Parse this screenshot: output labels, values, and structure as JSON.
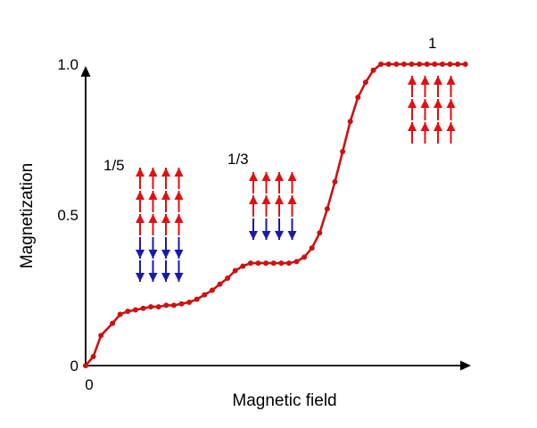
{
  "chart_data": {
    "type": "line",
    "title": "",
    "xlabel": "Magnetic field",
    "ylabel": "Magnetization",
    "x_tick_labels": [
      "0"
    ],
    "y_ticks": [
      {
        "value": 0,
        "label": "0"
      },
      {
        "value": 0.5,
        "label": "0.5"
      },
      {
        "value": 1.0,
        "label": "1.0"
      }
    ],
    "xlim": [
      0,
      1.0
    ],
    "ylim": [
      0,
      1.0
    ],
    "grid": false,
    "legend": "none",
    "series": [
      {
        "color": "#cc1111",
        "marker": "circle",
        "x": [
          0.0,
          0.02,
          0.04,
          0.07,
          0.09,
          0.11,
          0.13,
          0.15,
          0.17,
          0.19,
          0.21,
          0.23,
          0.25,
          0.27,
          0.29,
          0.31,
          0.33,
          0.35,
          0.37,
          0.39,
          0.41,
          0.43,
          0.45,
          0.47,
          0.49,
          0.51,
          0.53,
          0.55,
          0.57,
          0.59,
          0.61,
          0.63,
          0.65,
          0.67,
          0.69,
          0.71,
          0.73,
          0.75,
          0.77,
          0.79,
          0.81,
          0.83,
          0.85,
          0.87,
          0.89,
          0.91,
          0.93,
          0.95,
          0.97,
          0.99
        ],
        "y": [
          0.0,
          0.03,
          0.1,
          0.14,
          0.17,
          0.18,
          0.185,
          0.19,
          0.195,
          0.195,
          0.2,
          0.2,
          0.205,
          0.21,
          0.22,
          0.235,
          0.25,
          0.27,
          0.29,
          0.315,
          0.33,
          0.34,
          0.34,
          0.34,
          0.34,
          0.34,
          0.34,
          0.345,
          0.36,
          0.39,
          0.44,
          0.52,
          0.61,
          0.71,
          0.81,
          0.89,
          0.94,
          0.98,
          1.0,
          1.0,
          1.0,
          1.0,
          1.0,
          1.0,
          1.0,
          1.0,
          1.0,
          1.0,
          1.0,
          1.0
        ]
      }
    ],
    "annotations": [
      {
        "text": "1/5",
        "spins_up_rows": 3,
        "spins_down_rows": 2,
        "columns": 4
      },
      {
        "text": "1/3",
        "spins_up_rows": 2,
        "spins_down_rows": 1,
        "columns": 4
      },
      {
        "text": "1",
        "spins_up_rows": 3,
        "spins_down_rows": 0,
        "columns": 4
      }
    ],
    "colors": {
      "up": "#e01010",
      "down": "#1a1aaa",
      "curve": "#cc1111",
      "axis": "#000000"
    }
  }
}
